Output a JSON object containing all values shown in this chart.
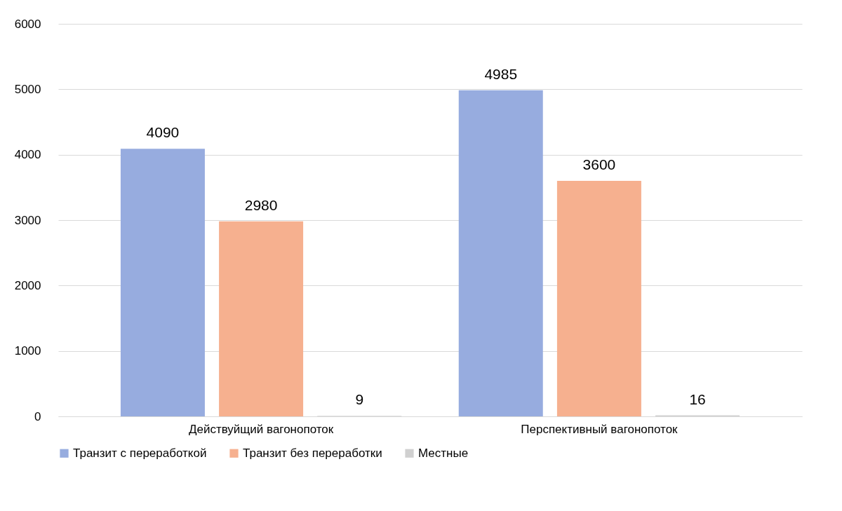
{
  "chart_data": {
    "type": "bar",
    "categories": [
      "Действуйщий вагонопоток",
      "Перспективный вагонопоток"
    ],
    "series": [
      {
        "name": "Транзит с переработкой",
        "color": "#97acdf",
        "values": [
          4090,
          4985
        ]
      },
      {
        "name": "Транзит без переработки",
        "color": "#f6b08f",
        "values": [
          2980,
          3600
        ]
      },
      {
        "name": "Местные",
        "color": "#d0d0d0",
        "values": [
          9,
          16
        ]
      }
    ],
    "ylim": [
      0,
      6000
    ],
    "yticks": [
      0,
      1000,
      2000,
      3000,
      4000,
      5000,
      6000
    ],
    "grid": "y",
    "legend": "bottom",
    "data_labels": true
  }
}
